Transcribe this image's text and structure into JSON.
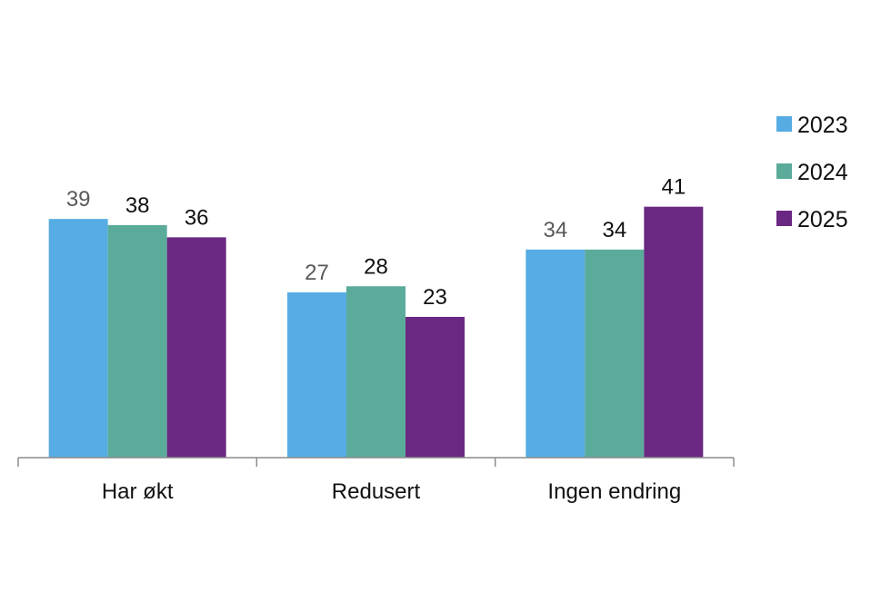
{
  "chart_data": {
    "type": "bar",
    "categories": [
      "Har økt",
      "Redusert",
      "Ingen endring"
    ],
    "series": [
      {
        "name": "2023",
        "values": [
          39,
          27,
          34
        ],
        "color": "#56ACE3",
        "label_color": "#595959"
      },
      {
        "name": "2024",
        "values": [
          38,
          28,
          34
        ],
        "color": "#5BAB9A",
        "label_color": "#111111"
      },
      {
        "name": "2025",
        "values": [
          36,
          23,
          41
        ],
        "color": "#6A2883",
        "label_color": "#111111"
      }
    ],
    "ylim": [
      0,
      45
    ],
    "grid": false,
    "legend_position": "right"
  }
}
